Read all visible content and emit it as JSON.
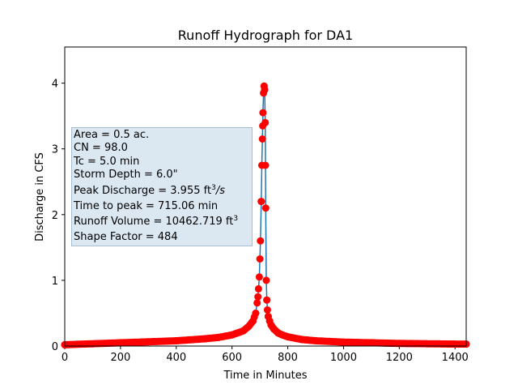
{
  "chart_data": {
    "type": "scatter",
    "title": "Runoff Hydrograph for DA1",
    "xlabel": "Time in Minutes",
    "ylabel": "Discharge in CFS",
    "xlim": [
      0,
      1440
    ],
    "ylim": [
      0,
      4.55
    ],
    "xticks": [
      "0",
      "200",
      "400",
      "600",
      "800",
      "1000",
      "1200",
      "1400"
    ],
    "yticks": [
      "0",
      "1",
      "2",
      "3",
      "4"
    ],
    "grid": false,
    "line_color": "#1f77b4",
    "marker_color": "#ff0000",
    "series": [
      {
        "x": [
          0,
          100,
          200,
          300,
          400,
          500,
          550,
          600,
          640,
          660,
          675,
          685,
          693,
          698,
          702,
          705,
          707,
          709,
          711,
          713,
          715,
          717,
          719,
          721,
          723,
          725,
          727,
          730,
          735,
          740,
          750,
          765,
          780,
          800,
          850,
          900,
          1000,
          1100,
          1200,
          1300,
          1400,
          1440
        ],
        "y": [
          0.02,
          0.035,
          0.05,
          0.065,
          0.08,
          0.11,
          0.13,
          0.17,
          0.23,
          0.3,
          0.38,
          0.5,
          0.75,
          1.05,
          1.6,
          2.2,
          2.75,
          3.15,
          3.55,
          3.85,
          3.955,
          3.9,
          3.4,
          2.1,
          1.0,
          0.7,
          0.55,
          0.45,
          0.38,
          0.32,
          0.26,
          0.2,
          0.17,
          0.14,
          0.1,
          0.08,
          0.06,
          0.05,
          0.04,
          0.035,
          0.03,
          0.03
        ]
      }
    ]
  },
  "info_box": {
    "area": "Area = 0.5 ac.",
    "cn": "CN = 98.0",
    "tc": "Tc = 5.0 min",
    "storm_depth": "Storm Depth = 6.0\"",
    "peak_discharge_prefix": "Peak Discharge = 3.955 ft",
    "peak_discharge_exp": "3",
    "peak_discharge_suffix": "/s",
    "time_to_peak": "Time to peak = 715.06 min",
    "runoff_volume_prefix": "Runoff Volume = 10462.719 ft",
    "runoff_volume_exp": "3",
    "shape_factor": "Shape Factor = 484"
  }
}
